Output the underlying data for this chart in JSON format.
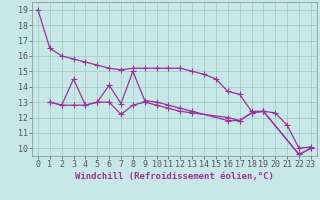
{
  "background_color": "#c8e8e8",
  "grid_color": "#a0c8c0",
  "line_color": "#993399",
  "marker": "+",
  "markersize": 4,
  "linewidth": 0.9,
  "xlabel": "Windchill (Refroidissement éolien,°C)",
  "xlabel_fontsize": 6.5,
  "tick_fontsize": 6,
  "ylim": [
    9.5,
    19.5
  ],
  "xlim": [
    -0.5,
    23.5
  ],
  "yticks": [
    10,
    11,
    12,
    13,
    14,
    15,
    16,
    17,
    18,
    19
  ],
  "xticks": [
    0,
    1,
    2,
    3,
    4,
    5,
    6,
    7,
    8,
    9,
    10,
    11,
    12,
    13,
    14,
    15,
    16,
    17,
    18,
    19,
    20,
    21,
    22,
    23
  ],
  "series": [
    {
      "x": [
        0,
        1,
        2,
        3,
        4,
        5,
        6,
        7,
        8,
        9,
        10,
        11,
        12,
        13,
        14,
        15,
        16,
        17,
        18,
        19,
        20,
        21,
        22,
        23
      ],
      "y": [
        19.0,
        16.5,
        16.0,
        15.8,
        15.6,
        15.4,
        15.2,
        15.1,
        15.2,
        15.2,
        15.2,
        15.2,
        15.2,
        15.0,
        14.8,
        14.5,
        13.7,
        13.5,
        12.4,
        12.4,
        12.3,
        11.5,
        10.0,
        10.1
      ]
    },
    {
      "x": [
        1,
        2,
        3,
        4,
        5,
        6,
        7,
        8,
        9,
        10,
        11,
        12,
        13,
        16,
        17,
        18,
        19,
        22,
        23
      ],
      "y": [
        13.0,
        12.8,
        14.5,
        12.8,
        13.0,
        14.1,
        12.9,
        15.0,
        13.1,
        13.0,
        12.8,
        12.6,
        12.4,
        11.8,
        11.8,
        12.3,
        12.4,
        9.6,
        10.0
      ]
    },
    {
      "x": [
        1,
        2,
        3,
        4,
        5,
        6,
        7,
        8,
        9,
        10,
        11,
        12,
        13,
        16,
        17,
        18,
        19,
        22,
        23
      ],
      "y": [
        13.0,
        12.8,
        12.8,
        12.8,
        13.0,
        13.0,
        12.2,
        12.8,
        13.0,
        12.8,
        12.6,
        12.4,
        12.3,
        12.0,
        11.8,
        12.3,
        12.4,
        9.6,
        10.0
      ]
    }
  ]
}
